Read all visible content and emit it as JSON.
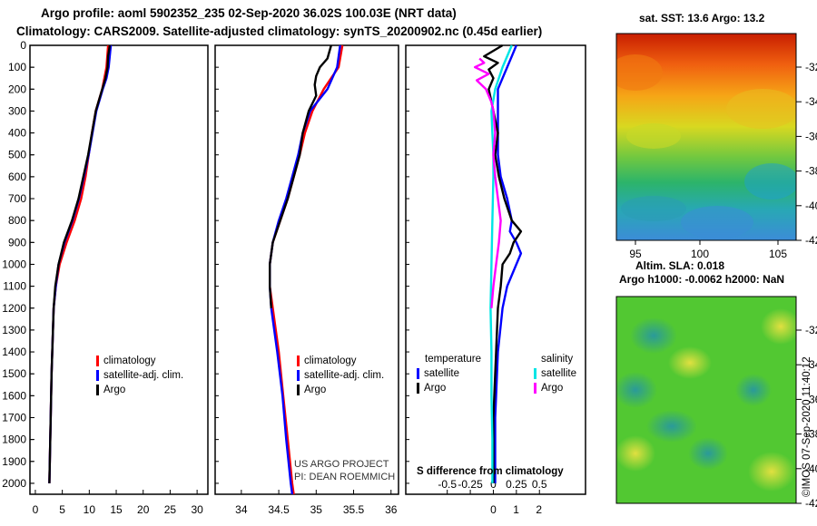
{
  "title_line1": "Argo profile: aoml 5902352_235 02-Sep-2020 36.02S 100.03E (NRT data)",
  "title_line2": "Climatology: CARS2009. Satellite-adjusted climatology: synTS_20200902.nc (0.45d earlier)",
  "colors": {
    "climatology": "#ff0000",
    "satellite": "#0000ff",
    "argo": "#000000",
    "sat_salinity": "#00e5e5",
    "argo_salinity": "#ff00ff"
  },
  "chart_data": [
    {
      "type": "line",
      "name": "temperature-profile",
      "ylabel": "Depth",
      "ylim": [
        0,
        2050
      ],
      "yticks": [
        0,
        100,
        200,
        300,
        400,
        500,
        600,
        700,
        800,
        900,
        1000,
        1100,
        1200,
        1300,
        1400,
        1500,
        1600,
        1700,
        1800,
        1900,
        2000
      ],
      "xlim": [
        -1,
        32
      ],
      "xticks": [
        0,
        5,
        10,
        15,
        20,
        25,
        30
      ],
      "legend": {
        "climatology": "climatology",
        "satellite": "satellite-adj. clim.",
        "argo": "Argo"
      },
      "series": [
        {
          "name": "climatology",
          "depth": [
            0,
            100,
            200,
            300,
            400,
            500,
            600,
            700,
            800,
            900,
            1000,
            1100,
            1200,
            1500,
            2000
          ],
          "values": [
            13.5,
            13.2,
            12.4,
            11.2,
            10.5,
            9.9,
            9.3,
            8.5,
            7.3,
            5.8,
            4.5,
            3.8,
            3.4,
            3.0,
            2.6
          ]
        },
        {
          "name": "satellite-adj. clim.",
          "depth": [
            0,
            50,
            100,
            150,
            200,
            300,
            400,
            500,
            600,
            700,
            800,
            900,
            1000,
            1100,
            1200,
            1500,
            2000
          ],
          "values": [
            14.0,
            13.8,
            13.6,
            13.2,
            12.5,
            11.3,
            10.6,
            9.9,
            9.0,
            8.1,
            6.9,
            5.4,
            4.3,
            3.8,
            3.4,
            3.0,
            2.6
          ]
        },
        {
          "name": "Argo",
          "depth": [
            0,
            50,
            100,
            150,
            200,
            300,
            400,
            500,
            600,
            700,
            800,
            900,
            1000,
            1100,
            1200,
            1500,
            2000
          ],
          "values": [
            13.8,
            13.5,
            13.4,
            13.0,
            12.4,
            11.2,
            10.5,
            9.8,
            8.9,
            8.0,
            6.8,
            5.3,
            4.3,
            3.7,
            3.4,
            3.0,
            2.6
          ]
        }
      ]
    },
    {
      "type": "line",
      "name": "salinity-profile",
      "ylim": [
        0,
        2050
      ],
      "xlim": [
        33.65,
        36.1
      ],
      "xticks": [
        34,
        34.5,
        35,
        35.5,
        36
      ],
      "legend": {
        "climatology": "climatology",
        "satellite": "satellite-adj. clim.",
        "argo": "Argo"
      },
      "series": [
        {
          "name": "climatology",
          "depth": [
            0,
            100,
            200,
            300,
            400,
            500,
            600,
            700,
            800,
            900,
            1000,
            1100,
            1200,
            1400,
            1600,
            1800,
            2000,
            2050
          ],
          "values": [
            35.35,
            35.3,
            35.1,
            34.95,
            34.85,
            34.78,
            34.7,
            34.62,
            34.52,
            34.42,
            34.38,
            34.38,
            34.42,
            34.5,
            34.56,
            34.62,
            34.68,
            34.7
          ]
        },
        {
          "name": "satellite-adj. clim.",
          "depth": [
            0,
            100,
            200,
            300,
            400,
            500,
            600,
            700,
            800,
            900,
            1000,
            1100,
            1200,
            1400,
            1600,
            1800,
            2000,
            2050
          ],
          "values": [
            35.32,
            35.28,
            35.15,
            34.92,
            34.82,
            34.76,
            34.68,
            34.6,
            34.5,
            34.42,
            34.38,
            34.38,
            34.4,
            34.48,
            34.55,
            34.6,
            34.66,
            34.68
          ]
        },
        {
          "name": "Argo",
          "depth": [
            0,
            60,
            100,
            140,
            180,
            230,
            300,
            400,
            500,
            600,
            700,
            800,
            900,
            1000,
            1100,
            1200
          ],
          "values": [
            35.2,
            35.15,
            35.05,
            35.0,
            34.98,
            35.0,
            34.9,
            34.82,
            34.78,
            34.7,
            34.62,
            34.52,
            34.42,
            34.38,
            34.38,
            34.4
          ]
        }
      ]
    },
    {
      "type": "line",
      "name": "difference-from-climatology",
      "ylim": [
        0,
        2050
      ],
      "xlim": [
        -0.95,
        1.0
      ],
      "xticks": [
        -0.5,
        -0.25,
        0,
        0.25,
        0.5
      ],
      "xlabel": "S difference from climatology",
      "bottom_ticks": [
        0,
        1,
        2
      ],
      "legend": {
        "temperature": "temperature",
        "salinity": "salinity",
        "satellite": "satellite",
        "argo": "Argo"
      },
      "series": [
        {
          "name": "temperature satellite",
          "depth": [
            0,
            50,
            100,
            150,
            200,
            300,
            400,
            500,
            600,
            700,
            800,
            850,
            900,
            950,
            1000,
            1100,
            1200,
            1400,
            1700,
            2000
          ],
          "values": [
            0.25,
            0.2,
            0.15,
            0.1,
            0.05,
            0.05,
            0.05,
            0.05,
            0.08,
            0.15,
            0.2,
            0.18,
            0.25,
            0.3,
            0.25,
            0.15,
            0.1,
            0.05,
            0.02,
            0.02
          ]
        },
        {
          "name": "temperature Argo",
          "depth": [
            0,
            50,
            80,
            110,
            150,
            200,
            300,
            400,
            500,
            600,
            700,
            800,
            850,
            900,
            950,
            1000,
            1100,
            1200,
            1400,
            1700,
            2000
          ],
          "values": [
            0.1,
            -0.1,
            0.05,
            -0.05,
            0.0,
            -0.05,
            0.0,
            0.05,
            0.02,
            0.06,
            0.12,
            0.2,
            0.3,
            0.22,
            0.18,
            0.1,
            0.08,
            0.05,
            0.03,
            0.0,
            0.0
          ]
        },
        {
          "name": "salinity satellite",
          "depth": [
            0,
            100,
            200,
            300,
            400,
            500,
            600,
            800,
            1000,
            1200,
            1400,
            1600,
            1800,
            2000
          ],
          "values": [
            0.2,
            0.1,
            0.02,
            -0.02,
            -0.01,
            0.0,
            0.0,
            -0.01,
            -0.02,
            -0.03,
            -0.02,
            -0.02,
            -0.01,
            -0.01
          ]
        },
        {
          "name": "salinity Argo",
          "depth": [
            60,
            80,
            100,
            130,
            160,
            200,
            260,
            300,
            400,
            500,
            600,
            700,
            800,
            900,
            1000,
            1100,
            1200
          ],
          "values": [
            -0.15,
            -0.1,
            -0.2,
            -0.05,
            -0.18,
            -0.08,
            -0.02,
            0.0,
            0.02,
            0.0,
            0.02,
            0.05,
            0.08,
            0.06,
            0.03,
            0.0,
            -0.02
          ]
        }
      ]
    }
  ],
  "credits": {
    "project": "US ARGO PROJECT",
    "pi": "PI: DEAN ROEMMICH"
  },
  "map_top": {
    "title": "sat. SST: 13.6 Argo: 13.2",
    "lon_ticks": [
      "95",
      "100",
      "105"
    ],
    "lat_ticks": [
      "-32",
      "-34",
      "-36",
      "-38",
      "-40",
      "-42"
    ]
  },
  "map_bottom": {
    "title1": "Altim. SLA: 0.018",
    "title2": "Argo h1000: -0.0062 h2000: NaN",
    "lat_ticks": [
      "-32",
      "-34",
      "-36",
      "-38",
      "-40",
      "-42"
    ]
  },
  "watermark": "©IMOS 07-Sep-2020 11:40:12"
}
